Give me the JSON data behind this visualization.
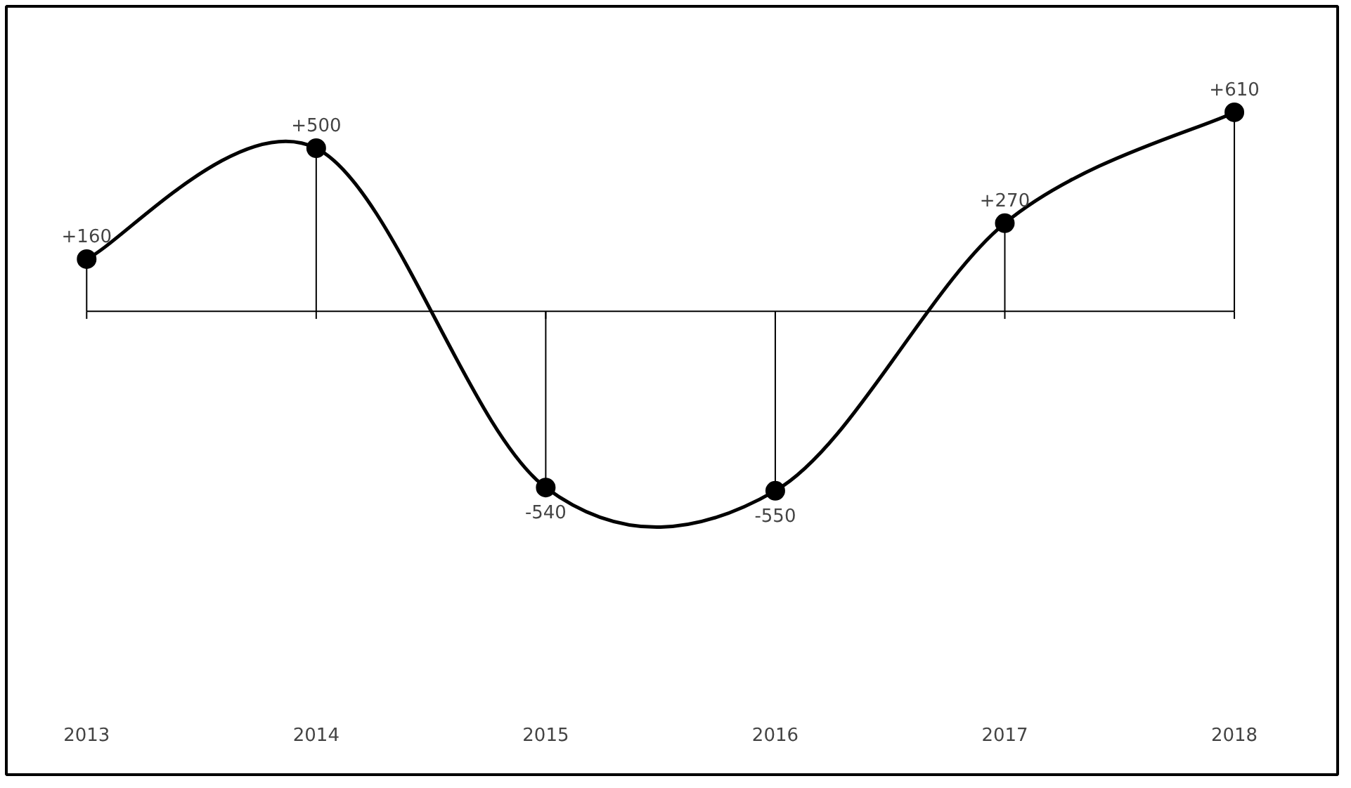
{
  "chart_data": {
    "type": "line",
    "x": [
      2013,
      2014,
      2015,
      2016,
      2017,
      2018
    ],
    "xlim": [
      2012.65,
      2018.45
    ],
    "xticks": [
      2013,
      2014,
      2015,
      2016,
      2017,
      2018
    ],
    "series": [
      {
        "color": "#000000",
        "values": [
          160,
          500,
          -540,
          -550,
          270,
          610
        ],
        "value_labels": [
          "+160",
          "+500",
          "-540",
          "-550",
          "+270",
          "+610"
        ]
      },
      {
        "type": "lollipop",
        "color": "#000000",
        "marker": "circle",
        "values": [
          160,
          500,
          -540,
          -550,
          270,
          610
        ]
      }
    ]
  }
}
